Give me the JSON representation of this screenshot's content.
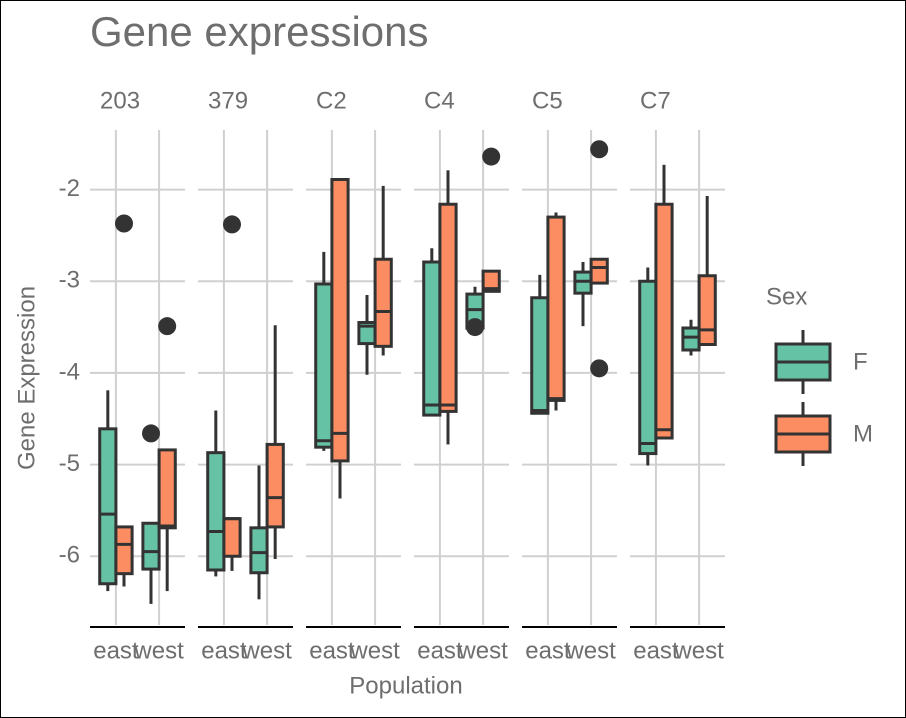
{
  "chart_data": {
    "type": "boxplot",
    "title": "Gene expressions",
    "x_label": "Population",
    "y_label": "Gene Expression",
    "legend_title": "Sex",
    "facets": [
      "203",
      "379",
      "C2",
      "C4",
      "C5",
      "C7"
    ],
    "categories": [
      "east",
      "west"
    ],
    "ylim": [
      -6.75,
      -1.35
    ],
    "yticks": [
      -6,
      -5,
      -4,
      -3,
      -2
    ],
    "grid": true,
    "series": [
      {
        "name": "F",
        "color": "#66c2a5",
        "boxes": [
          [
            {
              "whislo": -6.38,
              "q1": -6.3,
              "med": -5.54,
              "q3": -4.61,
              "whishi": -4.19,
              "fliers": []
            },
            {
              "whislo": -6.52,
              "q1": -6.14,
              "med": -5.95,
              "q3": -5.64,
              "whishi": -5.64,
              "fliers": [
                -4.66
              ]
            }
          ],
          [
            {
              "whislo": -6.22,
              "q1": -6.15,
              "med": -5.73,
              "q3": -4.87,
              "whishi": -4.41,
              "fliers": []
            },
            {
              "whislo": -6.47,
              "q1": -6.18,
              "med": -5.96,
              "q3": -5.69,
              "whishi": -5.01,
              "fliers": []
            }
          ],
          [
            {
              "whislo": -4.85,
              "q1": -4.81,
              "med": -4.74,
              "q3": -3.03,
              "whishi": -2.68,
              "fliers": []
            },
            {
              "whislo": -4.02,
              "q1": -3.68,
              "med": -3.49,
              "q3": -3.45,
              "whishi": -3.15,
              "fliers": []
            }
          ],
          [
            {
              "whislo": -4.46,
              "q1": -4.46,
              "med": -4.35,
              "q3": -2.79,
              "whishi": -2.64,
              "fliers": []
            },
            {
              "whislo": -3.59,
              "q1": -3.51,
              "med": -3.31,
              "q3": -3.14,
              "whishi": -3.06,
              "fliers": [
                -3.5
              ]
            }
          ],
          [
            {
              "whislo": -4.44,
              "q1": -4.44,
              "med": -4.41,
              "q3": -3.18,
              "whishi": -2.93,
              "fliers": []
            },
            {
              "whislo": -3.49,
              "q1": -3.13,
              "med": -3.0,
              "q3": -2.9,
              "whishi": -2.79,
              "fliers": []
            }
          ],
          [
            {
              "whislo": -5.01,
              "q1": -4.88,
              "med": -4.77,
              "q3": -3.0,
              "whishi": -2.85,
              "fliers": []
            },
            {
              "whislo": -3.81,
              "q1": -3.75,
              "med": -3.61,
              "q3": -3.51,
              "whishi": -3.42,
              "fliers": []
            }
          ]
        ]
      },
      {
        "name": "M",
        "color": "#fc8d62",
        "boxes": [
          [
            {
              "whislo": -6.33,
              "q1": -6.19,
              "med": -5.87,
              "q3": -5.68,
              "whishi": -5.68,
              "fliers": [
                -2.37
              ]
            },
            {
              "whislo": -6.38,
              "q1": -5.69,
              "med": -5.67,
              "q3": -4.84,
              "whishi": -4.84,
              "fliers": [
                -3.49
              ]
            }
          ],
          [
            {
              "whislo": -6.16,
              "q1": -6.0,
              "med": -5.59,
              "q3": -5.59,
              "whishi": -5.59,
              "fliers": [
                -2.38
              ]
            },
            {
              "whislo": -6.03,
              "q1": -5.68,
              "med": -5.36,
              "q3": -4.78,
              "whishi": -3.48,
              "fliers": []
            }
          ],
          [
            {
              "whislo": -5.37,
              "q1": -4.96,
              "med": -4.66,
              "q3": -1.89,
              "whishi": -1.89,
              "fliers": []
            },
            {
              "whislo": -3.81,
              "q1": -3.71,
              "med": -3.33,
              "q3": -2.76,
              "whishi": -1.96,
              "fliers": []
            }
          ],
          [
            {
              "whislo": -4.78,
              "q1": -4.42,
              "med": -4.35,
              "q3": -2.16,
              "whishi": -1.79,
              "fliers": []
            },
            {
              "whislo": -3.11,
              "q1": -3.11,
              "med": -3.08,
              "q3": -2.89,
              "whishi": -2.89,
              "fliers": [
                -1.64
              ]
            }
          ],
          [
            {
              "whislo": -4.41,
              "q1": -4.3,
              "med": -4.28,
              "q3": -2.3,
              "whishi": -2.25,
              "fliers": []
            },
            {
              "whislo": -3.02,
              "q1": -3.02,
              "med": -2.85,
              "q3": -2.76,
              "whishi": -2.76,
              "fliers": [
                -1.56,
                -3.95
              ]
            }
          ],
          [
            {
              "whislo": -4.71,
              "q1": -4.71,
              "med": -4.62,
              "q3": -2.16,
              "whishi": -1.73,
              "fliers": []
            },
            {
              "whislo": -3.69,
              "q1": -3.69,
              "med": -3.53,
              "q3": -2.94,
              "whishi": -2.07,
              "fliers": []
            }
          ]
        ]
      }
    ]
  }
}
